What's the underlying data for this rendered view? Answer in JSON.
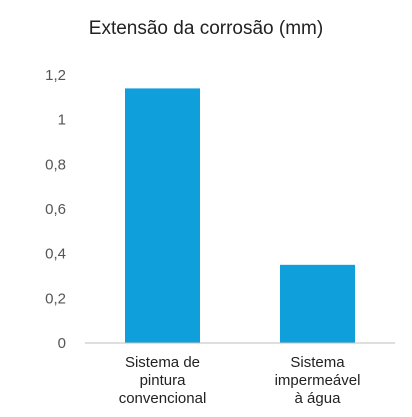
{
  "chart_data": {
    "type": "bar",
    "title": "Extensão da corrosão (mm)",
    "xlabel": "",
    "ylabel": "",
    "categories": [
      "Sistema de pintura convencional",
      "Sistema impermeável à água"
    ],
    "category_label_lines": [
      [
        "Sistema de",
        "pintura",
        "convencional"
      ],
      [
        "Sistema",
        "impermeável",
        "à água"
      ]
    ],
    "values": [
      1.14,
      0.35
    ],
    "ylim": [
      0,
      1.2
    ],
    "y_ticks": [
      0,
      0.2,
      0.4,
      0.6,
      0.8,
      1,
      1.2
    ],
    "y_tick_labels": [
      "0",
      "0,2",
      "0,4",
      "0,6",
      "0,8",
      "1",
      "1,2"
    ],
    "grid": false,
    "legend": "none",
    "colors": {
      "bar": "#0fa0dc",
      "axis": "#bfbfbf"
    }
  }
}
